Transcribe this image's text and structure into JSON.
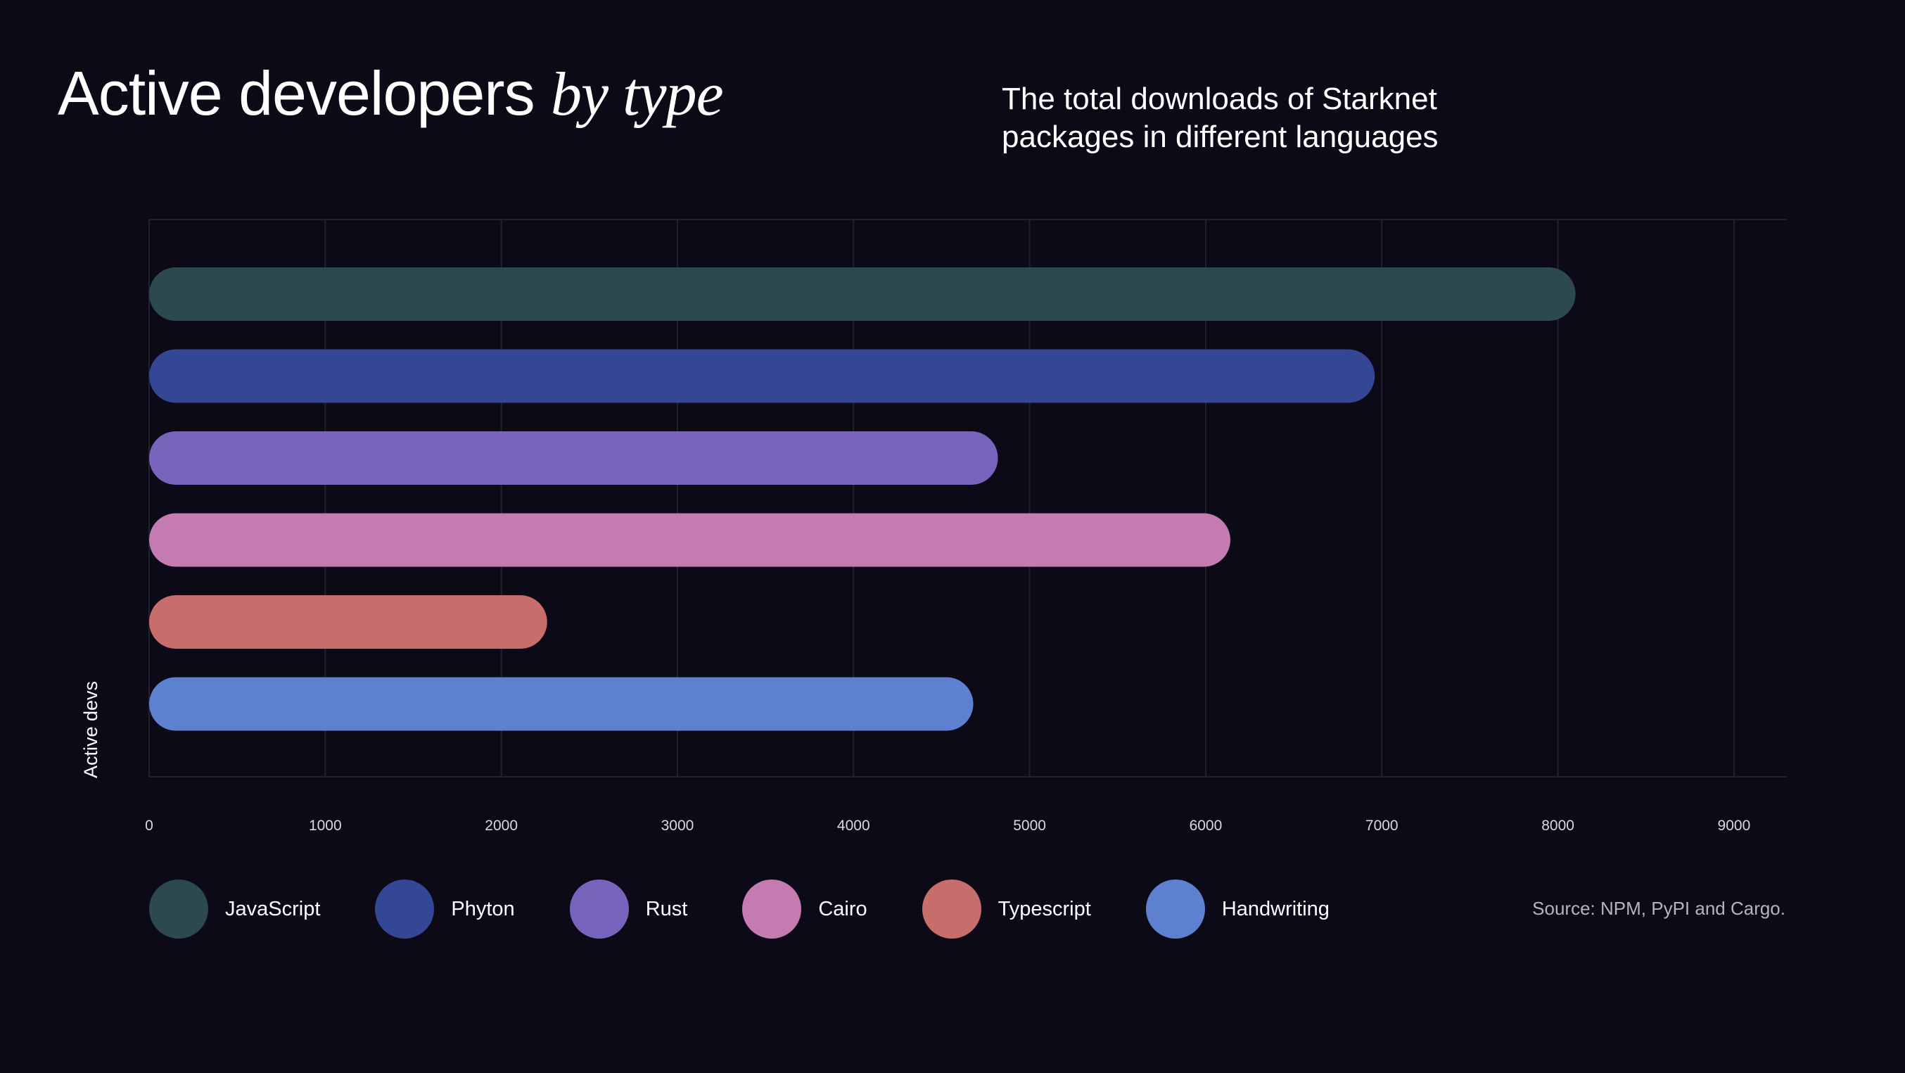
{
  "header": {
    "title_main": "Active developers ",
    "title_emphasis": "by type",
    "subtitle": "The total downloads of Starknet packages in different languages"
  },
  "source": "Source: NPM, PyPI and Cargo.",
  "chart_data": {
    "type": "bar",
    "orientation": "horizontal",
    "title": "Active developers by type",
    "subtitle": "The total downloads of Starknet packages in different languages",
    "xlabel": "",
    "ylabel": "Active devs",
    "xlim": [
      0,
      9300
    ],
    "xticks": [
      0,
      1000,
      2000,
      3000,
      4000,
      5000,
      6000,
      7000,
      8000,
      9000
    ],
    "categories": [
      "JavaScript",
      "Phyton",
      "Rust",
      "Cairo",
      "Typescript",
      "Handwriting"
    ],
    "values": [
      8100,
      6960,
      4820,
      6140,
      2260,
      4680
    ],
    "colors": [
      "#2c4a4e",
      "#344794",
      "#7864bd",
      "#c37bb2",
      "#c76d6b",
      "#5e80d1"
    ],
    "grid": true,
    "legend": "bottom-left"
  }
}
